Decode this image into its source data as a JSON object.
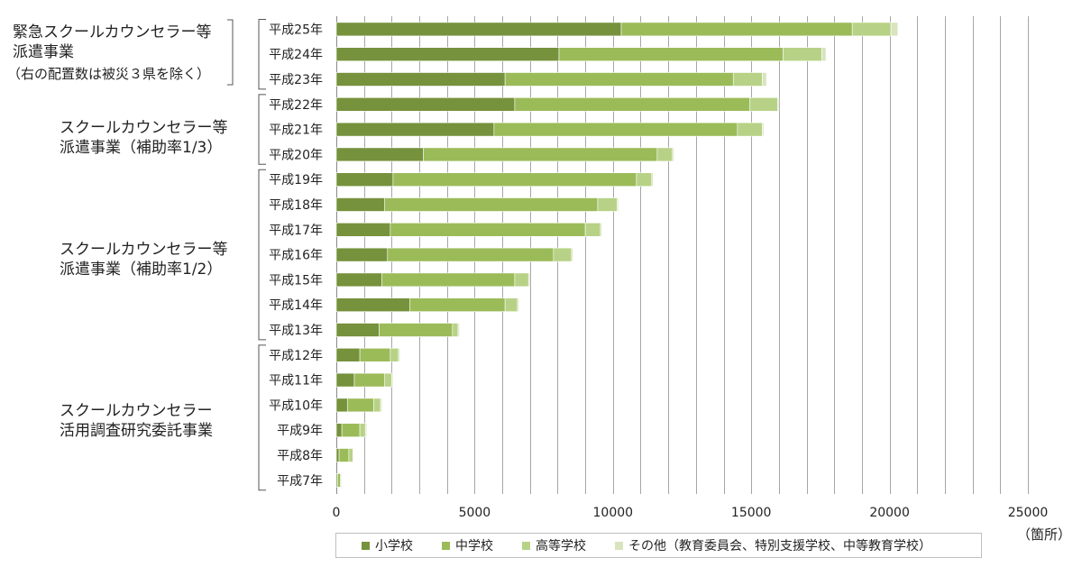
{
  "chart_data": {
    "type": "bar",
    "orientation": "horizontal",
    "stacked": true,
    "categories": [
      "平成25年",
      "平成24年",
      "平成23年",
      "平成22年",
      "平成21年",
      "平成20年",
      "平成19年",
      "平成18年",
      "平成17年",
      "平成16年",
      "平成15年",
      "平成14年",
      "平成13年",
      "平成12年",
      "平成11年",
      "平成10年",
      "平成9年",
      "平成8年",
      "平成7年"
    ],
    "series": [
      {
        "name": "小学校",
        "color": "#76923c",
        "values": [
          10300,
          8050,
          6100,
          6450,
          5700,
          3150,
          2050,
          1750,
          1950,
          1850,
          1650,
          2650,
          1550,
          850,
          650,
          400,
          200,
          100,
          50
        ]
      },
      {
        "name": "中学校",
        "color": "#9bbb59",
        "values": [
          8350,
          8100,
          8250,
          8500,
          8800,
          8450,
          8800,
          7700,
          7050,
          6000,
          4800,
          3450,
          2650,
          1100,
          1100,
          950,
          650,
          350,
          100
        ]
      },
      {
        "name": "高等学校",
        "color": "#b7d286",
        "values": [
          1400,
          1400,
          1050,
          1000,
          900,
          550,
          550,
          700,
          550,
          650,
          500,
          450,
          200,
          300,
          250,
          250,
          200,
          150,
          30
        ]
      },
      {
        "name": "その他（教育委員会、特別支援学校、中等教育学校）",
        "color": "#d7e4bd",
        "values": [
          250,
          150,
          150,
          50,
          50,
          50,
          50,
          50,
          50,
          50,
          50,
          50,
          50,
          50,
          50,
          50,
          50,
          20,
          20
        ]
      }
    ],
    "xlim": [
      0,
      25000
    ],
    "xticks": [
      0,
      5000,
      10000,
      15000,
      20000,
      25000
    ],
    "xlabel": "（箇所）",
    "groups": [
      {
        "label": "緊急スクールカウンセラー等\n派遣事業",
        "note": "（右の配置数は被災３県を除く）",
        "from": 0,
        "to": 2
      },
      {
        "label": "スクールカウンセラー等\n派遣事業（補助率1/3）",
        "from": 3,
        "to": 5
      },
      {
        "label": "スクールカウンセラー等\n派遣事業（補助率1/2）",
        "from": 6,
        "to": 12
      },
      {
        "label": "スクールカウンセラー\n活用調査研究委託事業",
        "from": 13,
        "to": 18
      }
    ],
    "grid": true,
    "legend_position": "bottom"
  }
}
